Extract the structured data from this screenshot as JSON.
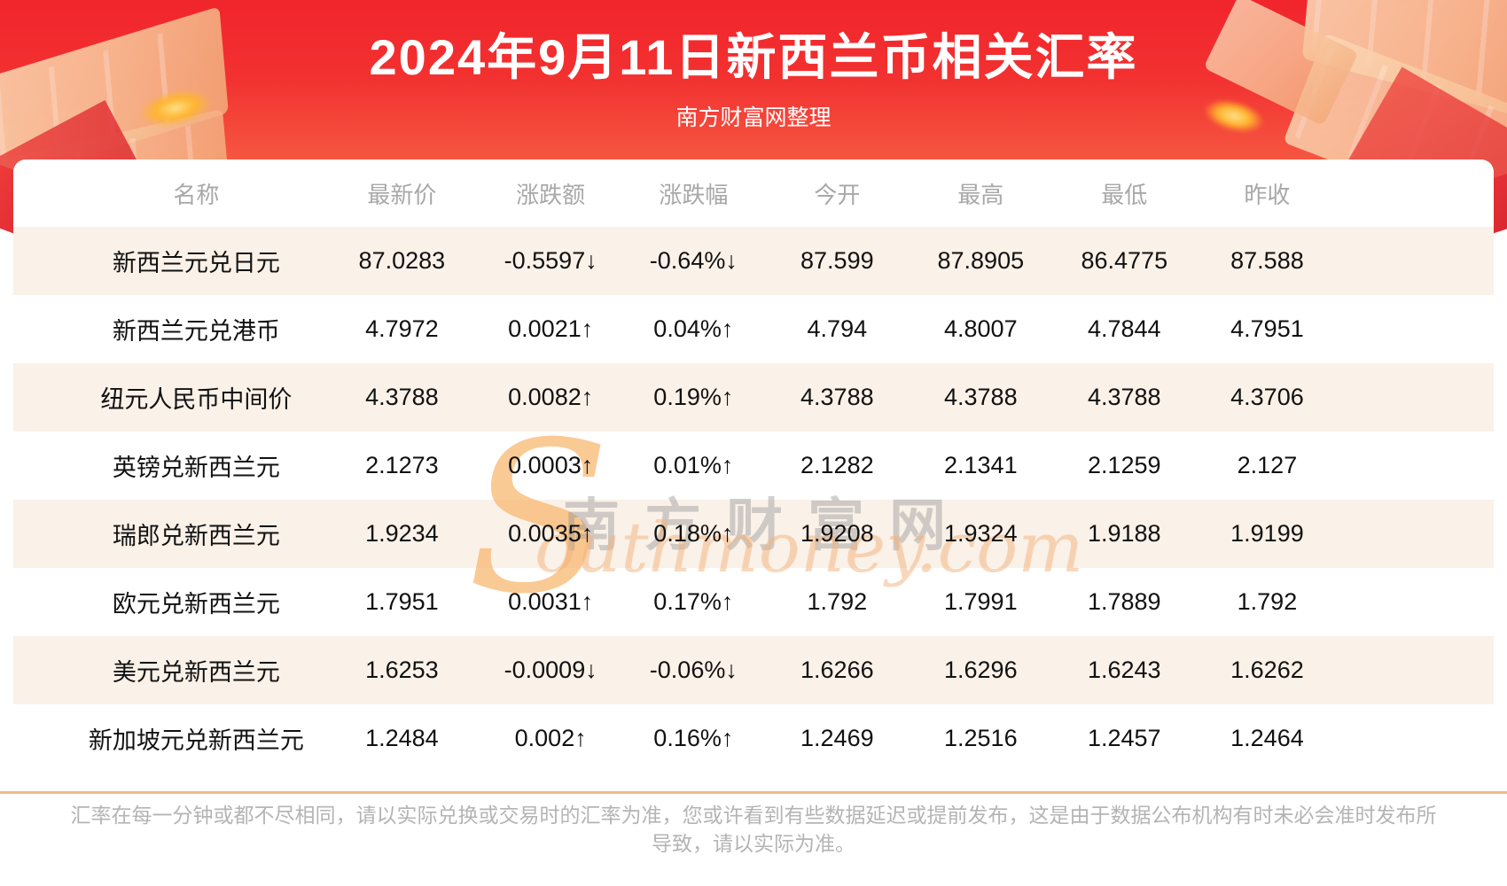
{
  "banner": {
    "title": "2024年9月11日新西兰币相关汇率",
    "subtitle": "南方财富网整理"
  },
  "chart_data": {
    "type": "table",
    "title": "2024年9月11日新西兰币相关汇率",
    "columns": [
      "名称",
      "最新价",
      "涨跌额",
      "涨跌幅",
      "今开",
      "最高",
      "最低",
      "昨收"
    ],
    "rows": [
      {
        "name": "新西兰元兑日元",
        "values": [
          "87.0283",
          "-0.5597↓",
          "-0.64%↓",
          "87.599",
          "87.8905",
          "86.4775",
          "87.588"
        ],
        "trend": "down"
      },
      {
        "name": "新西兰元兑港币",
        "values": [
          "4.7972",
          "0.0021↑",
          "0.04%↑",
          "4.794",
          "4.8007",
          "4.7844",
          "4.7951"
        ],
        "trend": "up"
      },
      {
        "name": "纽元人民币中间价",
        "values": [
          "4.3788",
          "0.0082↑",
          "0.19%↑",
          "4.3788",
          "4.3788",
          "4.3788",
          "4.3706"
        ],
        "trend": "up"
      },
      {
        "name": "英镑兑新西兰元",
        "values": [
          "2.1273",
          "0.0003↑",
          "0.01%↑",
          "2.1282",
          "2.1341",
          "2.1259",
          "2.127"
        ],
        "trend": "up"
      },
      {
        "name": "瑞郎兑新西兰元",
        "values": [
          "1.9234",
          "0.0035↑",
          "0.18%↑",
          "1.9208",
          "1.9324",
          "1.9188",
          "1.9199"
        ],
        "trend": "up"
      },
      {
        "name": "欧元兑新西兰元",
        "values": [
          "1.7951",
          "0.0031↑",
          "0.17%↑",
          "1.792",
          "1.7991",
          "1.7889",
          "1.792"
        ],
        "trend": "up"
      },
      {
        "name": "美元兑新西兰元",
        "values": [
          "1.6253",
          "-0.0009↓",
          "-0.06%↓",
          "1.6266",
          "1.6296",
          "1.6243",
          "1.6262"
        ],
        "trend": "down"
      },
      {
        "name": "新加坡元兑新西兰元",
        "values": [
          "1.2484",
          "0.002↑",
          "0.16%↑",
          "1.2469",
          "1.2516",
          "1.2457",
          "1.2464"
        ],
        "trend": "up"
      }
    ],
    "legend": "red = 上涨(up), green = 下跌(down)"
  },
  "watermark": {
    "initial": "S",
    "cn": "南方财富网",
    "en": "outhmoney.com"
  },
  "footer": {
    "disclaimer": "汇率在每一分钟或都不尽相同，请以实际兑换或交易时的汇率为准，您或许看到有些数据延迟或提前发布，这是由于数据公布机构有时未必会准时发布所导致，请以实际为准。"
  },
  "colors": {
    "up": "#fc0e0e",
    "down": "#1c9c1c",
    "stripe": "#faf1e8",
    "banner_top": "#f1252c",
    "banner_bottom": "#f76b4c",
    "divider": "#f1bc86"
  }
}
